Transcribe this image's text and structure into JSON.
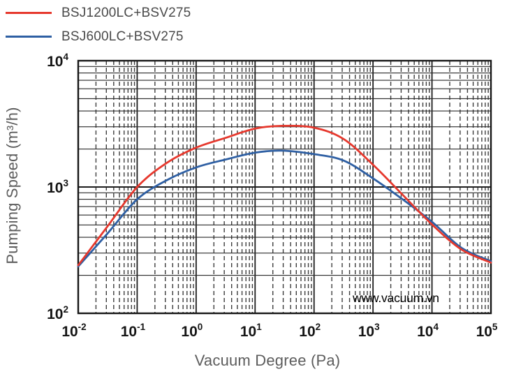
{
  "page": {
    "background": "#ffffff"
  },
  "legend": {
    "items": [
      {
        "label": "BSJ1200LC+BSV275",
        "color": "#e6382d"
      },
      {
        "label": "BSJ600LC+BSV275",
        "color": "#2e5fa3"
      }
    ]
  },
  "watermark": "www.vacuum.vn",
  "chart_data": {
    "type": "line",
    "title": "",
    "xlabel": "Vacuum Degree (Pa)",
    "ylabel": "Pumping Speed (m³/h)",
    "x_scale": "log",
    "y_scale": "log",
    "xlim": [
      0.01,
      100000
    ],
    "ylim": [
      100,
      10000
    ],
    "x_tick_exponents": [
      -2,
      -1,
      0,
      1,
      2,
      3,
      4,
      5
    ],
    "y_tick_exponents": [
      2,
      3,
      4
    ],
    "grid": true,
    "minor_grid": true,
    "x_minor_style": "dashed",
    "y_minor_style": "solid",
    "legend_position": "top-left",
    "x": [
      0.01,
      0.0316,
      0.1,
      0.316,
      1,
      3.16,
      10,
      28,
      100,
      316,
      1000,
      3160,
      10000,
      31600,
      100000
    ],
    "series": [
      {
        "name": "BSJ600LC+BSV275",
        "color": "#2e5fa3",
        "values": [
          235,
          430,
          800,
          1130,
          1430,
          1650,
          1870,
          1940,
          1820,
          1620,
          1170,
          800,
          530,
          330,
          258
        ]
      },
      {
        "name": "BSJ1200LC+BSV275",
        "color": "#e6382d",
        "values": [
          240,
          490,
          1000,
          1550,
          2050,
          2450,
          2900,
          3050,
          2950,
          2400,
          1500,
          870,
          505,
          320,
          252
        ]
      }
    ],
    "grid_colors": {
      "frame": "#161616",
      "major": "#1c1c1c",
      "minor_h": "#2a2a2a",
      "minor_v": "#3c3c3c"
    },
    "tick_label_color": "#151515"
  }
}
